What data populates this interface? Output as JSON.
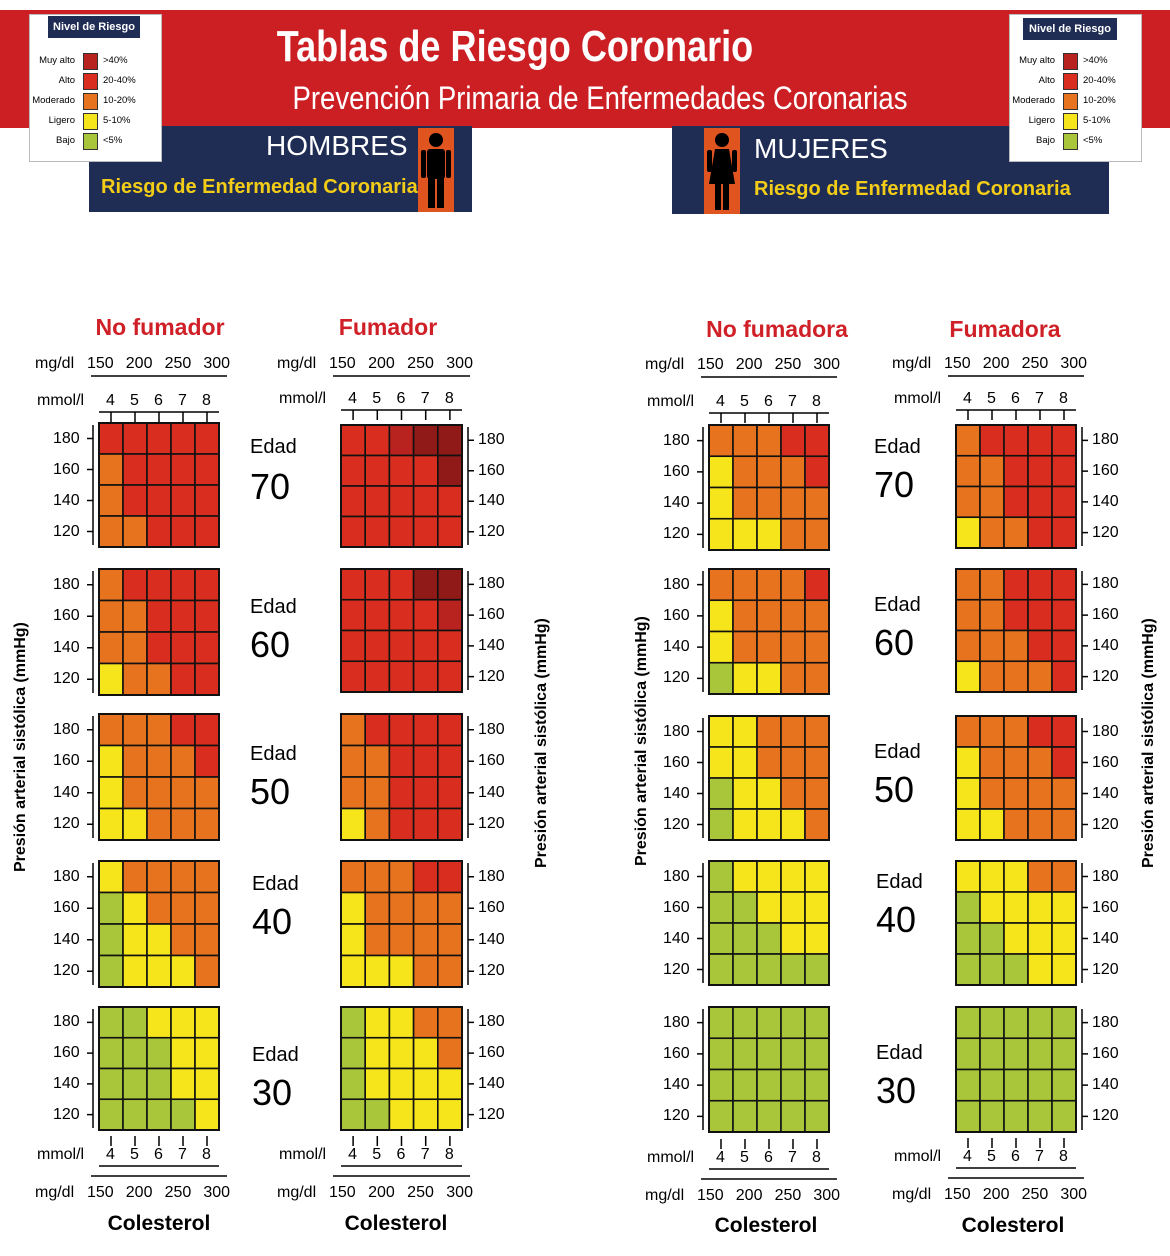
{
  "header": {
    "title": "Tablas de Riesgo Coronario",
    "subtitle": "Prevención Primaria de Enfermedades Coronarias",
    "men": {
      "label": "HOMBRES",
      "risk_label": "Riesgo de Enfermedad Coronaria"
    },
    "women": {
      "label": "MUJERES",
      "risk_label": "Riesgo de Enfermedad Coronaria"
    }
  },
  "legend": {
    "title": "Nivel de Riesgo",
    "items": [
      {
        "label": "Muy alto",
        "range": ">40%",
        "color": "#b8231f"
      },
      {
        "label": "Alto",
        "range": "20-40%",
        "color": "#d92e1f"
      },
      {
        "label": "Moderado",
        "range": "10-20%",
        "color": "#e8731f"
      },
      {
        "label": "Ligero",
        "range": "5-10%",
        "color": "#f5e51a"
      },
      {
        "label": "Bajo",
        "range": "<5%",
        "color": "#a9c53a"
      }
    ]
  },
  "axes": {
    "mgdl_label": "mg/dl",
    "mmol_label": "mmol/l",
    "mgdl_ticks": [
      "150",
      "200",
      "250",
      "300"
    ],
    "mmol_ticks": [
      "4",
      "5",
      "6",
      "7",
      "8"
    ],
    "sbp_ticks": [
      "180",
      "160",
      "140",
      "120"
    ],
    "edad_label": "Edad",
    "ages": [
      "70",
      "60",
      "50",
      "40",
      "30"
    ],
    "ylabel": "Presión arterial sistólica (mmHg)",
    "xlabel": "Colesterol"
  },
  "palette": {
    "U": "#8f1a18",
    "V": "#b8231f",
    "R": "#d92e1f",
    "O": "#e8731f",
    "Y": "#f5e51a",
    "G": "#a9c53a"
  },
  "chart_data": {
    "type": "heatmap",
    "title": "Tablas de Riesgo Coronario",
    "x_categories_mmol": [
      "4",
      "5",
      "6",
      "7",
      "8"
    ],
    "x_categories_mgdl": [
      "150",
      "200",
      "250",
      "300"
    ],
    "y_categories": [
      "180",
      "160",
      "140",
      "120"
    ],
    "ages": [
      "70",
      "60",
      "50",
      "40",
      "30"
    ],
    "xlabel": "Colesterol",
    "ylabel": "Presión arterial sistólica (mmHg)",
    "legend": [
      "Muy alto >40%",
      "Alto 20-40%",
      "Moderado 10-20%",
      "Ligero 5-10%",
      "Bajo <5%"
    ],
    "panels": [
      {
        "title": "No fumador",
        "group": "HOMBRES",
        "grids": [
          [
            "RRRRR",
            "ORRRR",
            "ORRRR",
            "OORRR"
          ],
          [
            "ORRRR",
            "OORRR",
            "OORRR",
            "YOORR"
          ],
          [
            "OOORR",
            "YOOOR",
            "YOOOO",
            "YYOOO"
          ],
          [
            "YOOOO",
            "GYOOO",
            "GYYOO",
            "GYYYO"
          ],
          [
            "GGYYY",
            "GGGYY",
            "GGGYY",
            "GGGGY"
          ]
        ]
      },
      {
        "title": "Fumador",
        "group": "HOMBRES",
        "grids": [
          [
            "RRVUU",
            "RRRRU",
            "RRRRR",
            "RRRRR"
          ],
          [
            "RRRUU",
            "RRRRV",
            "RRRRR",
            "RRRRR"
          ],
          [
            "ORRRR",
            "OORRR",
            "OORRR",
            "YORRR"
          ],
          [
            "OOORR",
            "YOOOO",
            "YOOOO",
            "YYYOO"
          ],
          [
            "GYYOO",
            "GYYYO",
            "GYYYY",
            "GGYYY"
          ]
        ]
      },
      {
        "title": "No fumadora",
        "group": "MUJERES",
        "grids": [
          [
            "OOORR",
            "YOOOR",
            "YOOOO",
            "YYYOO"
          ],
          [
            "OOOOR",
            "YOOOO",
            "YOOOO",
            "GYYOO"
          ],
          [
            "YYOOO",
            "YYOOO",
            "GYYOO",
            "GYYYO"
          ],
          [
            "GYYYY",
            "GGYYY",
            "GGGYY",
            "GGGGG"
          ],
          [
            "GGGGG",
            "GGGGG",
            "GGGGG",
            "GGGGG"
          ]
        ]
      },
      {
        "title": "Fumadora",
        "group": "MUJERES",
        "grids": [
          [
            "ORRRR",
            "OORRR",
            "OORRR",
            "YOORR"
          ],
          [
            "OORRR",
            "OORRR",
            "OOORR",
            "YOOOR"
          ],
          [
            "OOORR",
            "YOOOR",
            "YOOOO",
            "YYOOO"
          ],
          [
            "YYYOO",
            "GYYYY",
            "GGYYY",
            "GGGYY"
          ],
          [
            "GGGGG",
            "GGGGG",
            "GGGGG",
            "GGGGG"
          ]
        ]
      }
    ]
  }
}
